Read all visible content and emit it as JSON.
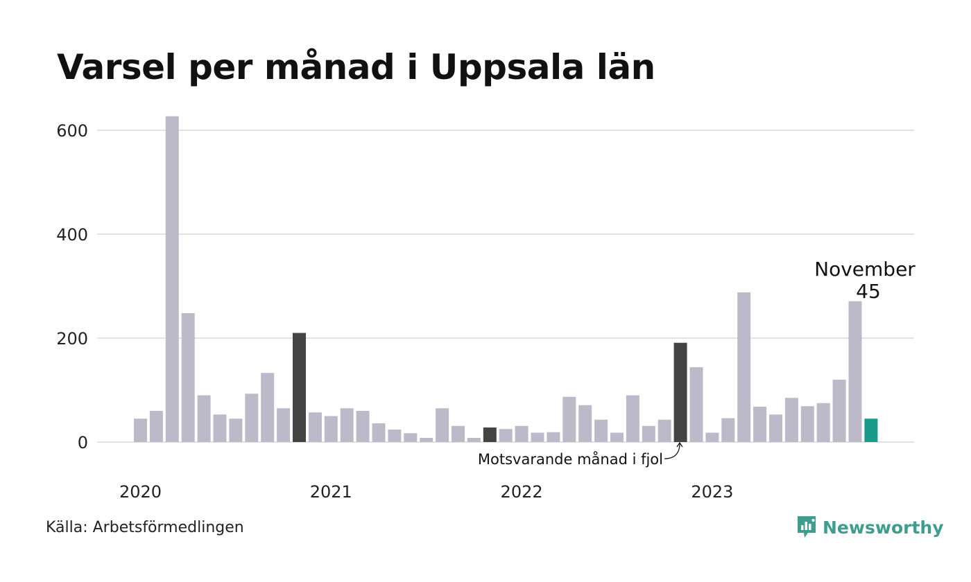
{
  "chart_data": {
    "type": "bar",
    "title": "Varsel per månad i Uppsala län",
    "xlabel": "",
    "ylabel": "",
    "ylim": [
      0,
      650
    ],
    "yticks": [
      0,
      200,
      400,
      600
    ],
    "year_labels": [
      {
        "label": "2020",
        "start_index": 0
      },
      {
        "label": "2021",
        "start_index": 12
      },
      {
        "label": "2022",
        "start_index": 24
      },
      {
        "label": "2023",
        "start_index": 36
      }
    ],
    "values": [
      45,
      60,
      627,
      248,
      90,
      53,
      45,
      93,
      133,
      65,
      210,
      57,
      50,
      65,
      60,
      36,
      24,
      17,
      8,
      65,
      31,
      8,
      28,
      25,
      31,
      18,
      19,
      87,
      71,
      43,
      18,
      90,
      31,
      43,
      191,
      144,
      18,
      46,
      288,
      68,
      53,
      85,
      69,
      75,
      120,
      271,
      45
    ],
    "highlight_indices": [
      10,
      22,
      34
    ],
    "current_index": 46,
    "colors": {
      "default": "#bcbac8",
      "highlight": "#444444",
      "current": "#1a9a8a",
      "grid": "#e2e2e2"
    },
    "grid": true,
    "annotation": {
      "month": "November",
      "value": "45"
    },
    "reference_note": "Motsvarande månad i fjol"
  },
  "footer": {
    "source": "Källa: Arbetsförmedlingen",
    "brand": "Newsworthy"
  }
}
